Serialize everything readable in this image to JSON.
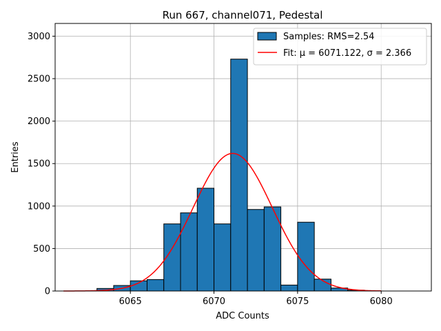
{
  "chart_data": {
    "type": "bar",
    "title": "Run 667, channel071, Pedestal",
    "xlabel": "ADC Counts",
    "ylabel": "Entries",
    "xlim": [
      6060.5,
      6083
    ],
    "ylim": [
      0,
      3150
    ],
    "xticks": [
      6065,
      6070,
      6075,
      6080
    ],
    "yticks": [
      0,
      500,
      1000,
      1500,
      2000,
      2500,
      3000
    ],
    "grid": true,
    "legend_position": "top-right",
    "series": [
      {
        "name": "Samples: RMS=2.54",
        "kind": "histogram",
        "color": "#1f77b4",
        "bin_edges": [
          6062,
          6063,
          6064,
          6065,
          6066,
          6067,
          6068,
          6069,
          6070,
          6071,
          6072,
          6073,
          6074,
          6075,
          6076,
          6077,
          6078,
          6079
        ],
        "values": [
          0,
          30,
          65,
          120,
          135,
          790,
          920,
          1210,
          790,
          2730,
          960,
          990,
          70,
          810,
          140,
          35,
          10
        ]
      },
      {
        "name": "Fit: μ = 6071.122, σ = 2.366",
        "kind": "gaussian_fit",
        "color": "#ff0000",
        "mu": 6071.122,
        "sigma": 2.366,
        "amplitude": 1620,
        "x_range": [
          6061,
          6080
        ]
      }
    ]
  }
}
